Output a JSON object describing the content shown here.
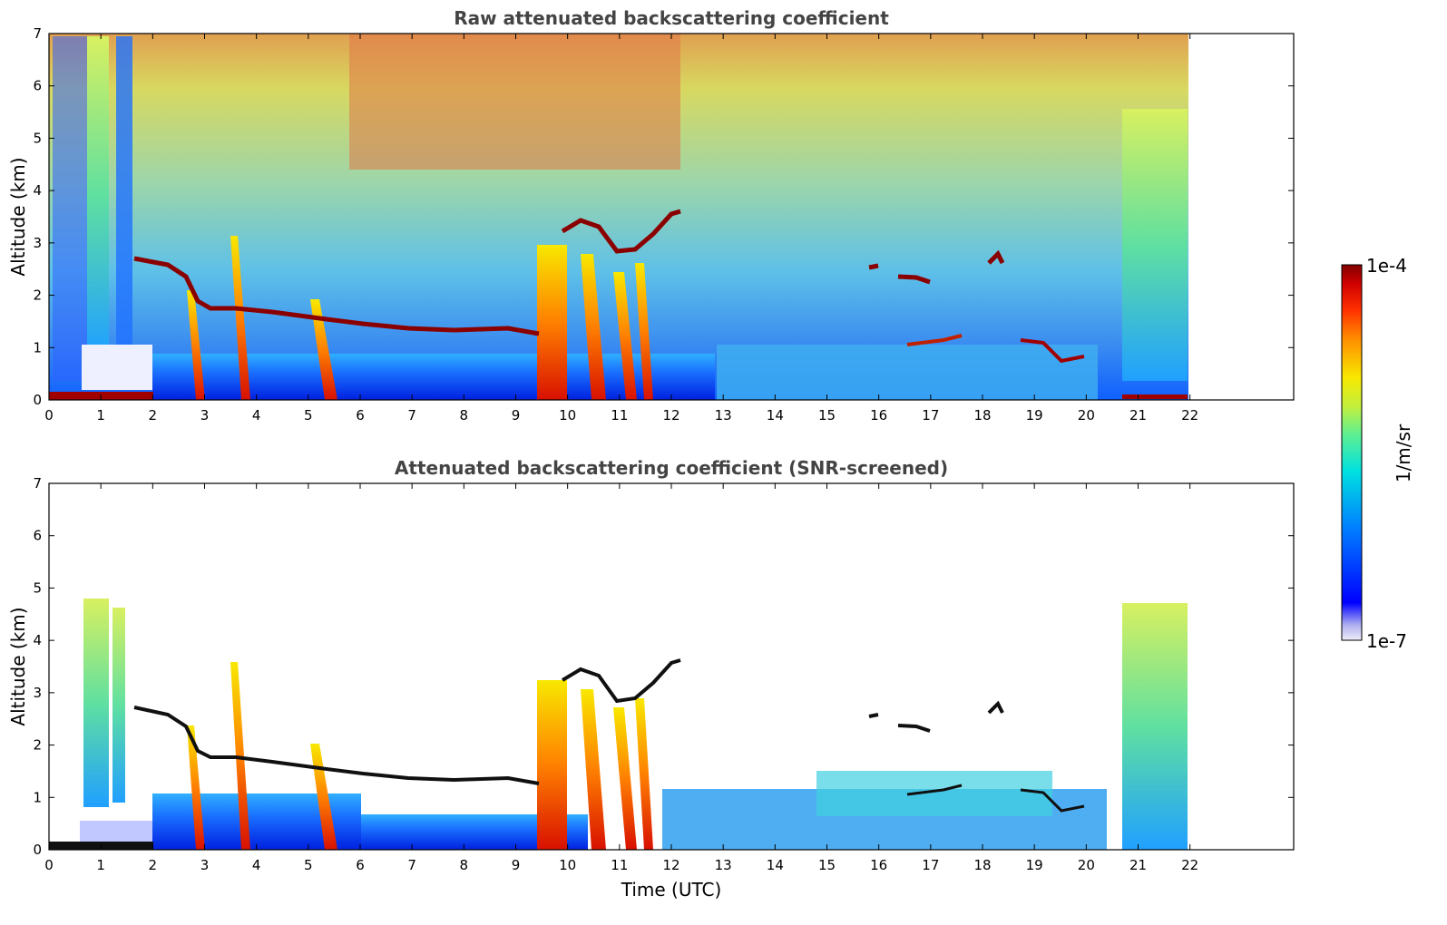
{
  "chart_data": [
    {
      "type": "heatmap",
      "title": "Raw attenuated backscattering coefficient",
      "xlabel": "",
      "ylabel": "Altitude (km)",
      "xlim": [
        0,
        24
      ],
      "ylim": [
        0,
        7
      ],
      "xticks": [
        "0",
        "1",
        "2",
        "3",
        "4",
        "5",
        "6",
        "7",
        "8",
        "9",
        "10",
        "11",
        "12",
        "13",
        "14",
        "15",
        "16",
        "17",
        "18",
        "19",
        "20",
        "21",
        "22"
      ],
      "yticks": [
        "0",
        "1",
        "2",
        "3",
        "4",
        "5",
        "6",
        "7"
      ],
      "data_extent_hours": [
        0,
        22
      ],
      "noise_background": true,
      "boundary_layer_top_km": [
        [
          2.0,
          2.7
        ],
        [
          2.5,
          2.55
        ],
        [
          2.9,
          1.85
        ],
        [
          3.5,
          1.75
        ],
        [
          4.5,
          1.65
        ],
        [
          5.5,
          1.5
        ],
        [
          6.5,
          1.4
        ],
        [
          7.5,
          1.3
        ],
        [
          8.5,
          1.35
        ],
        [
          9.5,
          1.25
        ]
      ],
      "elevated_layers_km": [
        [
          10.0,
          3.3
        ],
        [
          10.5,
          3.4
        ],
        [
          11.0,
          2.8
        ],
        [
          11.5,
          2.8
        ],
        [
          12.0,
          3.6
        ],
        [
          16.0,
          2.55
        ],
        [
          16.7,
          2.3
        ],
        [
          18.3,
          2.8
        ],
        [
          17.2,
          1.05
        ],
        [
          19.0,
          1.1
        ],
        [
          19.5,
          0.75
        ]
      ],
      "fall_streaks_hours": [
        2.9,
        3.7,
        5.4,
        9.8,
        10.3,
        11.2,
        11.5
      ]
    },
    {
      "type": "heatmap",
      "title": "Attenuated backscattering coefficient (SNR-screened)",
      "xlabel": "Time (UTC)",
      "ylabel": "Altitude (km)",
      "xlim": [
        0,
        24
      ],
      "ylim": [
        0,
        7
      ],
      "xticks": [
        "0",
        "1",
        "2",
        "3",
        "4",
        "5",
        "6",
        "7",
        "8",
        "9",
        "10",
        "11",
        "12",
        "13",
        "14",
        "15",
        "16",
        "17",
        "18",
        "19",
        "20",
        "21",
        "22"
      ],
      "yticks": [
        "0",
        "1",
        "2",
        "3",
        "4",
        "5",
        "6",
        "7"
      ],
      "data_extent_hours": [
        0,
        22
      ],
      "noise_background": false
    }
  ],
  "colorbar": {
    "max_label": "1e-4",
    "min_label": "1e-7",
    "unit_label": "1/m/sr",
    "colors": [
      "#e8e8f8",
      "#b8b8f0",
      "#0000ff",
      "#0050ff",
      "#00a0ff",
      "#00e0e0",
      "#40f0a0",
      "#a0f040",
      "#f0f000",
      "#ffb000",
      "#ff5000",
      "#e00000",
      "#800000"
    ]
  }
}
